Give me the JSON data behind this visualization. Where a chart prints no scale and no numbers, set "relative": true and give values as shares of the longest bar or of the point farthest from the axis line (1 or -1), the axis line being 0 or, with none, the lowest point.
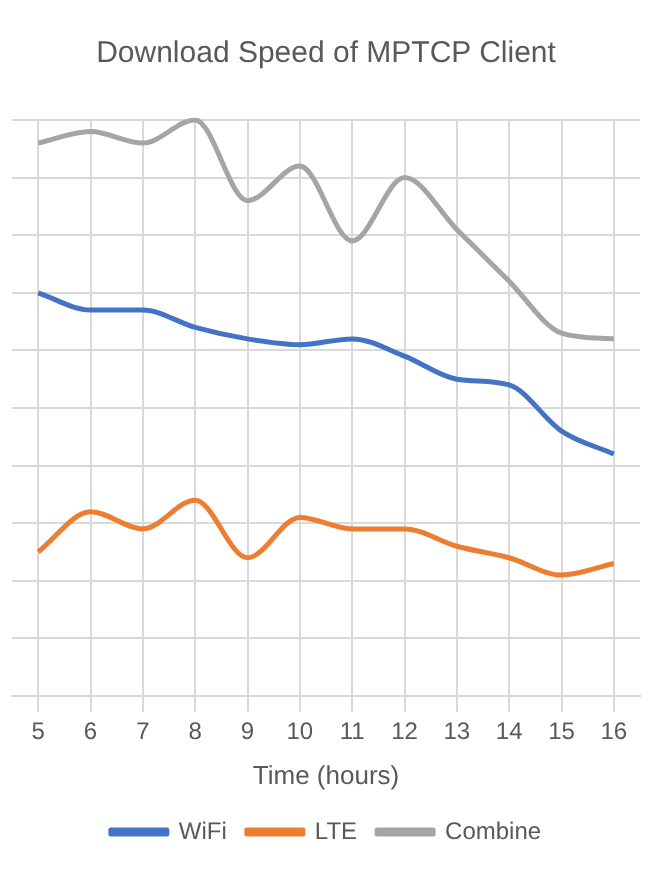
{
  "chart_data": {
    "type": "line",
    "title": "Download Speed of MPTCP Client",
    "xlabel": "Time (hours)",
    "relative": true,
    "grid": true,
    "legend": "bottom",
    "marker": "none",
    "line_style": "solid",
    "categories": [
      "5",
      "6",
      "7",
      "8",
      "9",
      "10",
      "11",
      "12",
      "13",
      "14",
      "15",
      "16"
    ],
    "series": [
      {
        "name": "WiFi",
        "color": "#4472c4",
        "values": [
          0.7,
          0.67,
          0.67,
          0.64,
          0.62,
          0.61,
          0.62,
          0.59,
          0.55,
          0.54,
          0.46,
          0.42
        ]
      },
      {
        "name": "LTE",
        "color": "#ed7d31",
        "values": [
          0.25,
          0.32,
          0.29,
          0.34,
          0.24,
          0.31,
          0.29,
          0.29,
          0.26,
          0.24,
          0.21,
          0.23
        ]
      },
      {
        "name": "Combine",
        "color": "#a5a5a5",
        "values": [
          0.96,
          0.98,
          0.96,
          1,
          0.86,
          0.92,
          0.79,
          0.9,
          0.81,
          0.72,
          0.63,
          0.62
        ]
      }
    ]
  }
}
